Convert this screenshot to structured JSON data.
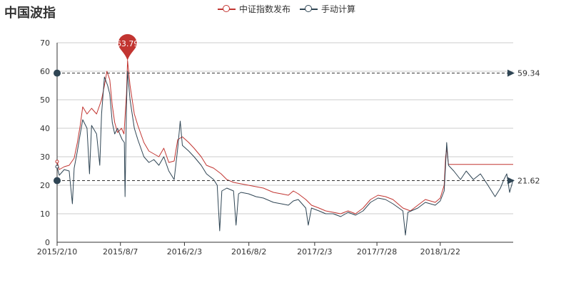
{
  "title": "中国波指",
  "legend": [
    {
      "name": "中证指数发布",
      "color": "#c23531"
    },
    {
      "name": "手动计算",
      "color": "#2f4554"
    }
  ],
  "chart_data": {
    "type": "line",
    "title": "中国波指",
    "ylim": [
      0,
      70
    ],
    "yticks": [
      0,
      10,
      20,
      30,
      40,
      50,
      60,
      70
    ],
    "x_range": [
      "2015-02-10",
      "2018-08-15"
    ],
    "xticks": [
      "2015/2/10",
      "2015/8/7",
      "2016/2/3",
      "2016/8/2",
      "2017/2/3",
      "2017/7/28",
      "2018/1/22"
    ],
    "xtick_dates": [
      "2015-02-10",
      "2015-08-07",
      "2016-02-03",
      "2016-08-02",
      "2017-02-03",
      "2017-07-28",
      "2018-01-22"
    ],
    "grid": true,
    "legend_position": "top-center",
    "series": [
      {
        "name": "中证指数发布",
        "color": "#c23531",
        "points": [
          [
            "2015-02-10",
            28.3
          ],
          [
            "2015-02-16",
            25.5
          ],
          [
            "2015-03-02",
            26.5
          ],
          [
            "2015-03-16",
            27.0
          ],
          [
            "2015-03-30",
            29.5
          ],
          [
            "2015-04-08",
            35.0
          ],
          [
            "2015-04-16",
            41.0
          ],
          [
            "2015-04-23",
            47.5
          ],
          [
            "2015-05-05",
            45.0
          ],
          [
            "2015-05-18",
            47.0
          ],
          [
            "2015-06-01",
            45.0
          ],
          [
            "2015-06-15",
            50.0
          ],
          [
            "2015-06-23",
            55.0
          ],
          [
            "2015-06-30",
            60.0
          ],
          [
            "2015-07-08",
            57.0
          ],
          [
            "2015-07-15",
            48.0
          ],
          [
            "2015-07-22",
            42.0
          ],
          [
            "2015-07-30",
            38.5
          ],
          [
            "2015-08-10",
            40.0
          ],
          [
            "2015-08-17",
            38.0
          ],
          [
            "2015-08-24",
            52.0
          ],
          [
            "2015-08-27",
            63.79
          ],
          [
            "2015-09-03",
            55.0
          ],
          [
            "2015-09-15",
            45.0
          ],
          [
            "2015-09-25",
            41.0
          ],
          [
            "2015-10-12",
            35.0
          ],
          [
            "2015-10-26",
            32.0
          ],
          [
            "2015-11-09",
            31.0
          ],
          [
            "2015-11-23",
            30.0
          ],
          [
            "2015-12-07",
            33.0
          ],
          [
            "2015-12-21",
            28.0
          ],
          [
            "2016-01-05",
            28.5
          ],
          [
            "2016-01-15",
            36.0
          ],
          [
            "2016-01-28",
            37.0
          ],
          [
            "2016-02-15",
            35.0
          ],
          [
            "2016-03-01",
            33.0
          ],
          [
            "2016-03-21",
            30.0
          ],
          [
            "2016-04-05",
            27.0
          ],
          [
            "2016-04-25",
            26.0
          ],
          [
            "2016-05-16",
            24.0
          ],
          [
            "2016-06-01",
            22.0
          ],
          [
            "2016-06-20",
            21.0
          ],
          [
            "2016-07-11",
            20.5
          ],
          [
            "2016-08-01",
            20.0
          ],
          [
            "2016-08-22",
            19.5
          ],
          [
            "2016-09-12",
            19.0
          ],
          [
            "2016-10-10",
            17.5
          ],
          [
            "2016-11-01",
            17.0
          ],
          [
            "2016-11-21",
            16.5
          ],
          [
            "2016-12-05",
            18.0
          ],
          [
            "2016-12-19",
            17.0
          ],
          [
            "2017-01-09",
            15.0
          ],
          [
            "2017-01-25",
            13.0
          ],
          [
            "2017-02-15",
            12.0
          ],
          [
            "2017-03-06",
            11.0
          ],
          [
            "2017-03-27",
            10.5
          ],
          [
            "2017-04-17",
            10.0
          ],
          [
            "2017-05-08",
            11.0
          ],
          [
            "2017-05-29",
            10.0
          ],
          [
            "2017-06-19",
            12.0
          ],
          [
            "2017-07-10",
            15.0
          ],
          [
            "2017-07-31",
            16.5
          ],
          [
            "2017-08-21",
            16.0
          ],
          [
            "2017-09-11",
            15.0
          ],
          [
            "2017-10-09",
            12.0
          ],
          [
            "2017-10-30",
            11.0
          ],
          [
            "2017-11-20",
            13.0
          ],
          [
            "2017-12-11",
            15.0
          ],
          [
            "2018-01-08",
            14.0
          ],
          [
            "2018-01-22",
            15.5
          ],
          [
            "2018-02-02",
            20.0
          ],
          [
            "2018-02-06",
            30.0
          ],
          [
            "2018-02-09",
            33.0
          ],
          [
            "2018-02-14",
            27.3
          ],
          [
            "2018-08-15",
            27.3
          ]
        ]
      },
      {
        "name": "手动计算",
        "color": "#2f4554",
        "points": [
          [
            "2015-02-10",
            26.5
          ],
          [
            "2015-02-16",
            23.5
          ],
          [
            "2015-03-02",
            25.5
          ],
          [
            "2015-03-16",
            25.0
          ],
          [
            "2015-03-25",
            13.5
          ],
          [
            "2015-03-30",
            26.0
          ],
          [
            "2015-04-08",
            32.0
          ],
          [
            "2015-04-16",
            38.0
          ],
          [
            "2015-04-23",
            43.0
          ],
          [
            "2015-05-05",
            40.0
          ],
          [
            "2015-05-12",
            24.0
          ],
          [
            "2015-05-18",
            41.0
          ],
          [
            "2015-06-01",
            38.0
          ],
          [
            "2015-06-10",
            27.0
          ],
          [
            "2015-06-15",
            45.0
          ],
          [
            "2015-06-23",
            58.0
          ],
          [
            "2015-07-02",
            55.0
          ],
          [
            "2015-07-08",
            52.0
          ],
          [
            "2015-07-15",
            42.0
          ],
          [
            "2015-07-22",
            38.0
          ],
          [
            "2015-07-30",
            40.0
          ],
          [
            "2015-08-05",
            38.0
          ],
          [
            "2015-08-12",
            36.0
          ],
          [
            "2015-08-18",
            35.0
          ],
          [
            "2015-08-20",
            16.0
          ],
          [
            "2015-08-24",
            48.0
          ],
          [
            "2015-08-27",
            60.0
          ],
          [
            "2015-09-03",
            50.0
          ],
          [
            "2015-09-15",
            40.0
          ],
          [
            "2015-09-25",
            36.0
          ],
          [
            "2015-10-12",
            30.0
          ],
          [
            "2015-10-26",
            28.0
          ],
          [
            "2015-11-09",
            29.0
          ],
          [
            "2015-11-23",
            27.0
          ],
          [
            "2015-12-07",
            30.0
          ],
          [
            "2015-12-21",
            25.0
          ],
          [
            "2016-01-05",
            22.0
          ],
          [
            "2016-01-15",
            33.0
          ],
          [
            "2016-01-22",
            42.5
          ],
          [
            "2016-01-28",
            34.0
          ],
          [
            "2016-02-15",
            32.0
          ],
          [
            "2016-03-01",
            30.0
          ],
          [
            "2016-03-21",
            27.0
          ],
          [
            "2016-04-05",
            24.0
          ],
          [
            "2016-04-25",
            22.0
          ],
          [
            "2016-05-05",
            20.0
          ],
          [
            "2016-05-12",
            4.0
          ],
          [
            "2016-05-18",
            18.0
          ],
          [
            "2016-06-01",
            19.0
          ],
          [
            "2016-06-20",
            18.0
          ],
          [
            "2016-06-27",
            6.0
          ],
          [
            "2016-07-04",
            17.0
          ],
          [
            "2016-07-11",
            17.5
          ],
          [
            "2016-08-01",
            17.0
          ],
          [
            "2016-08-22",
            16.0
          ],
          [
            "2016-09-12",
            15.5
          ],
          [
            "2016-10-10",
            14.0
          ],
          [
            "2016-11-01",
            13.5
          ],
          [
            "2016-11-21",
            13.0
          ],
          [
            "2016-12-05",
            14.5
          ],
          [
            "2016-12-19",
            15.0
          ],
          [
            "2017-01-09",
            12.0
          ],
          [
            "2017-01-16",
            6.0
          ],
          [
            "2017-01-25",
            12.0
          ],
          [
            "2017-02-15",
            11.0
          ],
          [
            "2017-03-06",
            10.0
          ],
          [
            "2017-03-27",
            10.0
          ],
          [
            "2017-04-17",
            9.0
          ],
          [
            "2017-05-08",
            10.5
          ],
          [
            "2017-05-29",
            9.5
          ],
          [
            "2017-06-19",
            11.0
          ],
          [
            "2017-07-10",
            14.0
          ],
          [
            "2017-07-31",
            15.5
          ],
          [
            "2017-08-21",
            15.0
          ],
          [
            "2017-09-11",
            13.5
          ],
          [
            "2017-10-09",
            11.0
          ],
          [
            "2017-10-16",
            2.5
          ],
          [
            "2017-10-23",
            10.5
          ],
          [
            "2017-11-20",
            12.0
          ],
          [
            "2017-12-11",
            14.0
          ],
          [
            "2018-01-08",
            13.0
          ],
          [
            "2018-01-22",
            14.5
          ],
          [
            "2018-02-02",
            18.0
          ],
          [
            "2018-02-06",
            27.0
          ],
          [
            "2018-02-09",
            35.0
          ],
          [
            "2018-02-14",
            27.0
          ],
          [
            "2018-03-01",
            25.0
          ],
          [
            "2018-03-20",
            22.0
          ],
          [
            "2018-04-05",
            25.0
          ],
          [
            "2018-04-25",
            22.0
          ],
          [
            "2018-05-15",
            24.0
          ],
          [
            "2018-06-05",
            20.0
          ],
          [
            "2018-06-25",
            16.0
          ],
          [
            "2018-07-10",
            19.0
          ],
          [
            "2018-07-20",
            22.0
          ],
          [
            "2018-07-28",
            24.0
          ],
          [
            "2018-08-05",
            17.5
          ],
          [
            "2018-08-15",
            22.0
          ]
        ]
      }
    ],
    "mark_point": {
      "series": "中证指数发布",
      "date": "2015-08-27",
      "value": 63.79,
      "label": "63.79"
    },
    "mark_lines": [
      {
        "series": "中证指数发布",
        "value": 59.34,
        "label": "59.34"
      },
      {
        "series": "手动计算",
        "value": 21.62,
        "label": "21.62"
      }
    ]
  }
}
